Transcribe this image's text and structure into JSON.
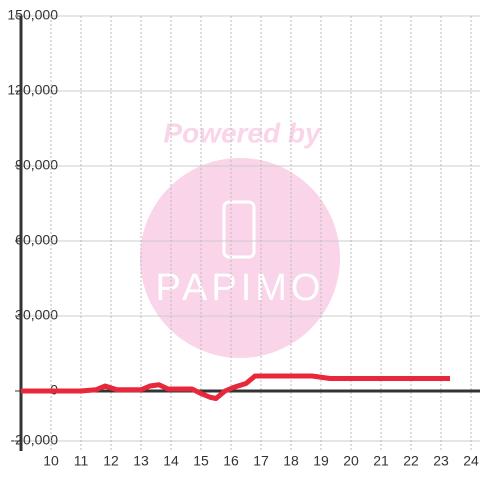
{
  "chart_data": {
    "type": "line",
    "watermark": "Powered by",
    "watermark_logo": "PAPIMO",
    "x": [
      9,
      11,
      11.5,
      11.8,
      12.2,
      13,
      13.3,
      13.6,
      13.9,
      14.7,
      15.0,
      15.3,
      15.5,
      15.8,
      16.1,
      16.5,
      16.8,
      18,
      18.7,
      19.3,
      20,
      23.3
    ],
    "series": [
      {
        "color": "#e8283a",
        "values": [
          0,
          0,
          500,
          2000,
          500,
          500,
          2000,
          2500,
          800,
          800,
          -1000,
          -2500,
          -3000,
          0,
          1500,
          3000,
          6000,
          6000,
          6000,
          5000,
          5000,
          5000
        ]
      }
    ],
    "xlim": [
      9,
      24.3
    ],
    "xticks": [
      10,
      11,
      12,
      13,
      14,
      15,
      16,
      17,
      18,
      19,
      20,
      21,
      22,
      23,
      24
    ],
    "ylim": [
      -24000,
      150000
    ],
    "yticks": [
      {
        "value": -20000,
        "label": "-20,000"
      },
      0,
      {
        "value": 30000,
        "label": "30,000"
      },
      {
        "value": 60000,
        "label": "60,000"
      },
      {
        "value": 90000,
        "label": "90,000"
      },
      {
        "value": 120000,
        "label": "120,000"
      },
      {
        "value": 150000,
        "label": "150,000"
      }
    ],
    "grid": true
  }
}
